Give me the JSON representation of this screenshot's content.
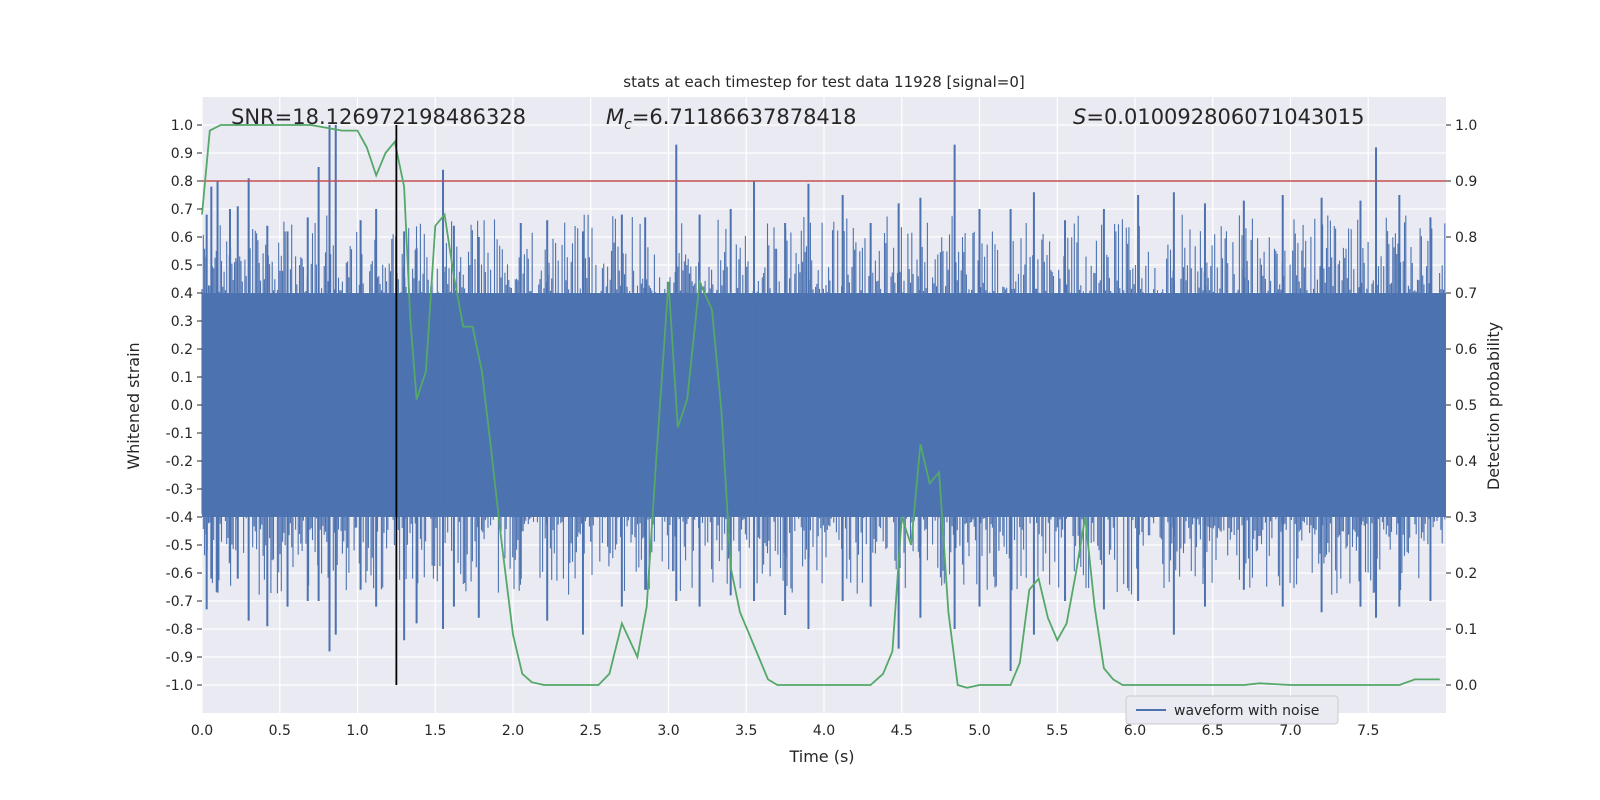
{
  "chart_data": {
    "type": "line",
    "title": "stats at each timestep for test data 11928 [signal=0]",
    "xlabel": "Time (s)",
    "ylabel": "Whitened strain",
    "y2label": "Detection probability",
    "xlim": [
      0.0,
      8.0
    ],
    "ylim": [
      -1.1,
      1.1
    ],
    "y2lim": [
      -0.05,
      1.05
    ],
    "xticks": [
      "0.0",
      "0.5",
      "1.0",
      "1.5",
      "2.0",
      "2.5",
      "3.0",
      "3.5",
      "4.0",
      "4.5",
      "5.0",
      "5.5",
      "6.0",
      "6.5",
      "7.0",
      "7.5"
    ],
    "yticks": [
      "1.0",
      "0.9",
      "0.8",
      "0.7",
      "0.6",
      "0.5",
      "0.4",
      "0.3",
      "0.2",
      "0.1",
      "0.0",
      "-0.1",
      "-0.2",
      "-0.3",
      "-0.4",
      "-0.5",
      "-0.6",
      "-0.7",
      "-0.8",
      "-0.9",
      "-1.0"
    ],
    "y2ticks": [
      "1.0",
      "0.9",
      "0.8",
      "0.7",
      "0.6",
      "0.5",
      "0.4",
      "0.3",
      "0.2",
      "0.1",
      "0.0"
    ],
    "annotations": {
      "snr": "SNR=18.126972198486328",
      "mc_symbol": "M",
      "mc_sub": "c",
      "mc_value": "=6.71186637878418",
      "s_symbol": "S",
      "s_value": "=0.010092806071043015"
    },
    "legend": {
      "label": "waveform with noise",
      "position": "lower-right"
    },
    "threshold": {
      "value": 0.9,
      "axis": "y2",
      "color": "#c44e52"
    },
    "marker_time": 1.25,
    "waveform_peaks": {
      "description_free": true,
      "x": [
        0.03,
        0.06,
        0.1,
        0.18,
        0.23,
        0.3,
        0.42,
        0.55,
        0.68,
        0.75,
        0.82,
        0.86,
        1.02,
        1.12,
        1.3,
        1.38,
        1.55,
        1.62,
        1.78,
        2.05,
        2.22,
        2.45,
        2.7,
        2.85,
        3.05,
        3.2,
        3.4,
        3.55,
        3.75,
        3.9,
        4.12,
        4.3,
        4.48,
        4.62,
        4.84,
        5.0,
        5.2,
        5.35,
        5.55,
        5.8,
        6.02,
        6.25,
        6.45,
        6.7,
        6.95,
        7.2,
        7.45,
        7.55,
        7.7,
        7.9
      ],
      "top": [
        0.68,
        0.78,
        0.8,
        0.7,
        0.71,
        0.81,
        0.64,
        0.62,
        0.67,
        0.85,
        1.0,
        1.0,
        0.66,
        0.7,
        0.62,
        0.56,
        0.84,
        0.64,
        0.6,
        0.65,
        0.66,
        0.62,
        0.68,
        0.67,
        0.93,
        0.68,
        0.7,
        0.8,
        0.65,
        0.79,
        0.75,
        0.65,
        0.72,
        0.74,
        0.93,
        0.7,
        0.7,
        0.76,
        0.66,
        0.7,
        0.75,
        0.76,
        0.72,
        0.73,
        0.75,
        0.74,
        0.73,
        0.92,
        0.75,
        0.67
      ],
      "bottom": [
        -0.73,
        -0.62,
        -0.67,
        -0.56,
        -0.62,
        -0.77,
        -0.79,
        -0.72,
        -0.7,
        -0.7,
        -0.88,
        -0.82,
        -0.66,
        -0.72,
        -0.84,
        -0.78,
        -0.8,
        -0.72,
        -0.76,
        -0.62,
        -0.77,
        -0.82,
        -0.72,
        -0.66,
        -0.7,
        -0.72,
        -0.68,
        -0.7,
        -0.75,
        -0.8,
        -0.7,
        -0.72,
        -0.87,
        -0.76,
        -0.8,
        -0.72,
        -0.95,
        -0.82,
        -0.7,
        -0.73,
        -0.7,
        -0.82,
        -0.72,
        -0.66,
        -0.72,
        -0.74,
        -0.72,
        -0.76,
        -0.72,
        -0.7
      ]
    },
    "series": [
      {
        "name": "waveform with noise",
        "axis": "y",
        "color": "#4c72b0",
        "envelope": [
          -0.4,
          0.4
        ]
      },
      {
        "name": "detection probability",
        "axis": "y2",
        "color": "#55a868",
        "x": [
          0.0,
          0.05,
          0.12,
          0.2,
          0.3,
          0.4,
          0.5,
          0.6,
          0.7,
          0.8,
          0.9,
          1.0,
          1.06,
          1.12,
          1.18,
          1.24,
          1.3,
          1.34,
          1.38,
          1.44,
          1.5,
          1.56,
          1.62,
          1.68,
          1.74,
          1.8,
          1.86,
          1.92,
          2.0,
          2.06,
          2.12,
          2.2,
          2.3,
          2.45,
          2.55,
          2.62,
          2.7,
          2.8,
          2.86,
          2.92,
          3.0,
          3.06,
          3.12,
          3.2,
          3.28,
          3.34,
          3.4,
          3.46,
          3.52,
          3.58,
          3.64,
          3.7,
          3.8,
          4.0,
          4.2,
          4.3,
          4.38,
          4.44,
          4.5,
          4.56,
          4.62,
          4.68,
          4.74,
          4.8,
          4.86,
          4.92,
          5.0,
          5.2,
          5.26,
          5.32,
          5.38,
          5.44,
          5.5,
          5.56,
          5.62,
          5.68,
          5.74,
          5.8,
          5.86,
          5.92,
          6.0,
          6.2,
          6.5,
          6.7,
          6.8,
          7.0,
          7.2,
          7.5,
          7.7,
          7.8,
          7.96
        ],
        "y": [
          0.84,
          0.99,
          1.0,
          1.0,
          1.0,
          1.0,
          1.0,
          1.0,
          1.0,
          0.995,
          0.99,
          0.99,
          0.96,
          0.91,
          0.95,
          0.97,
          0.89,
          0.65,
          0.51,
          0.56,
          0.82,
          0.84,
          0.73,
          0.64,
          0.64,
          0.56,
          0.42,
          0.27,
          0.09,
          0.02,
          0.005,
          0.0,
          0.0,
          0.0,
          0.0,
          0.02,
          0.11,
          0.05,
          0.14,
          0.4,
          0.72,
          0.46,
          0.51,
          0.72,
          0.67,
          0.49,
          0.21,
          0.13,
          0.09,
          0.05,
          0.01,
          0.0,
          0.0,
          0.0,
          0.0,
          0.0,
          0.02,
          0.06,
          0.3,
          0.25,
          0.43,
          0.36,
          0.38,
          0.13,
          0.0,
          -0.005,
          0.0,
          0.0,
          0.04,
          0.17,
          0.19,
          0.12,
          0.08,
          0.11,
          0.2,
          0.3,
          0.14,
          0.03,
          0.01,
          0.0,
          0.0,
          0.0,
          0.0,
          0.0,
          0.003,
          0.0,
          0.0,
          0.0,
          0.0,
          0.01,
          0.01
        ]
      }
    ]
  }
}
